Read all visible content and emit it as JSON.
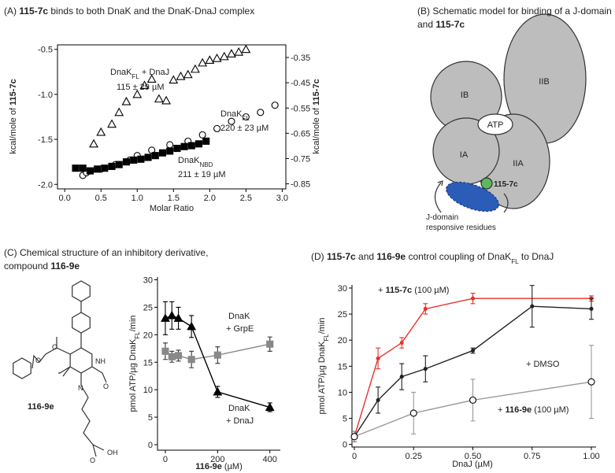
{
  "panels": {
    "a_title": [
      [
        "(A) ",
        "115-7c",
        " binds to both DnaK and the DnaK-DnaJ complex"
      ]
    ],
    "b_title": [
      [
        "(B) Schematic model for binding of a J-domain"
      ],
      [
        "and ",
        "115-7c"
      ]
    ],
    "c_title": [
      [
        "(C) Chemical structure of an inhibitory derivative,"
      ],
      [
        "compound ",
        "116-9e"
      ]
    ],
    "d_title": [
      [
        "(D) ",
        "115-7c",
        " and ",
        "116-9e",
        " control coupling of DnaK",
        "FL",
        " to DnaJ"
      ]
    ]
  },
  "diagram": {
    "domains": [
      "IB",
      "IIB",
      "ATP",
      "IA",
      "IIA"
    ],
    "ligand": "115-7c",
    "note": [
      "J-domain",
      "responsive residues"
    ]
  },
  "structure": {
    "name": "116-9e",
    "atoms": [
      "O",
      "O",
      "NH",
      "N",
      "O",
      "O",
      "OH"
    ]
  },
  "chart_data": [
    {
      "type": "scatter",
      "xlabel": "Molar Ratio",
      "ylabel": [
        "kcal/mole of ",
        "115-7c"
      ],
      "y2label": [
        "kcal/mole of ",
        "115-7c"
      ],
      "xlim": [
        -0.1,
        3.05
      ],
      "ylim": [
        -2.05,
        -0.45
      ],
      "y2lim": [
        -0.87,
        -0.3
      ],
      "xticks": [
        {
          "value": 0,
          "label": "0.0"
        },
        0.5,
        {
          "value": 1,
          "label": "1.0"
        },
        1.5,
        {
          "value": 2,
          "label": "2.0"
        },
        2.5,
        {
          "value": 3,
          "label": "3.0"
        }
      ],
      "yticks": [
        {
          "value": -2,
          "label": "-2.0"
        },
        -1.5,
        {
          "value": -1,
          "label": "-1.0"
        },
        -0.5
      ],
      "y2ticks": [
        -0.85,
        -0.75,
        -0.65,
        -0.55,
        -0.45,
        -0.35
      ],
      "series": [
        {
          "label": [
            "DnaK",
            "FL",
            " + DnaJ"
          ],
          "kd": "115 ± 29 µM",
          "marker": "triangle",
          "filled": false,
          "color": "#000000",
          "x": [
            0.4,
            0.5,
            0.65,
            0.75,
            0.85,
            1.0,
            1.1,
            1.2,
            1.3,
            1.4,
            1.5,
            1.6,
            1.7,
            1.8,
            1.9,
            2.0,
            2.1,
            2.2,
            2.3,
            2.4,
            2.5
          ],
          "values": [
            -1.55,
            -1.42,
            -1.33,
            -1.2,
            -1.08,
            -1.0,
            -0.9,
            -0.83,
            -1.05,
            -1.07,
            -0.84,
            -0.8,
            -0.78,
            -0.72,
            -0.65,
            -0.62,
            -0.6,
            -0.58,
            -0.55,
            -0.53,
            -0.5
          ]
        },
        {
          "label": [
            "DnaK",
            "FL",
            ""
          ],
          "kd": "220 ± 23 µM",
          "marker": "circle",
          "filled": false,
          "color": "#000000",
          "x": [
            0.25,
            0.3,
            0.5,
            0.7,
            0.9,
            1.0,
            1.2,
            1.45,
            1.7,
            1.9,
            2.1,
            2.3,
            2.5,
            2.7,
            2.9
          ],
          "values": [
            -1.9,
            -1.87,
            -1.83,
            -1.78,
            -1.73,
            -1.68,
            -1.62,
            -1.56,
            -1.52,
            -1.45,
            -1.38,
            -1.3,
            -1.25,
            -1.2,
            -1.12
          ]
        },
        {
          "label": [
            "DnaK",
            "NBD",
            ""
          ],
          "kd": "211 ± 19 µM",
          "marker": "square",
          "filled": true,
          "color": "#000000",
          "x": [
            0.15,
            0.25,
            0.35,
            0.45,
            0.55,
            0.65,
            0.75,
            0.85,
            0.95,
            1.05,
            1.15,
            1.25,
            1.35,
            1.45,
            1.55,
            1.65,
            1.75,
            1.85,
            1.95
          ],
          "values": [
            -1.82,
            -1.82,
            -1.85,
            -1.83,
            -1.82,
            -1.8,
            -1.78,
            -1.75,
            -1.73,
            -1.72,
            -1.7,
            -1.68,
            -1.65,
            -1.63,
            -1.6,
            -1.58,
            -1.57,
            -1.55,
            -1.52
          ]
        }
      ]
    },
    {
      "type": "line",
      "xlabel": [
        "116-9e",
        " (µM)"
      ],
      "ylabel": [
        "pmol ATP/µg DnaK",
        "FL",
        "/min"
      ],
      "xlim": [
        -30,
        440
      ],
      "ylim": [
        -1,
        30.5
      ],
      "xticks": [
        0,
        200,
        400
      ],
      "yticks": [
        0,
        5,
        10,
        15,
        20,
        25,
        30
      ],
      "series": [
        {
          "label": [
            "DnaK",
            "+ GrpE"
          ],
          "marker": "square",
          "filled": true,
          "color": "#888888",
          "x": [
            0,
            25,
            50,
            100,
            200,
            400
          ],
          "values": [
            17,
            16,
            16.2,
            15.5,
            16.3,
            18.3
          ],
          "errors": [
            1.5,
            1,
            1,
            1.5,
            1.5,
            1.3
          ]
        },
        {
          "label": [
            "DnaK",
            "+ DnaJ"
          ],
          "marker": "triangle",
          "filled": true,
          "color": "#000000",
          "x": [
            0,
            25,
            50,
            100,
            200,
            400
          ],
          "values": [
            23,
            23.5,
            23,
            21.5,
            9.6,
            6.8
          ],
          "errors": [
            3,
            2.5,
            2,
            2,
            1,
            0.8
          ]
        }
      ]
    },
    {
      "type": "line",
      "xlabel": "DnaJ (µM)",
      "ylabel": [
        "pmol ATP/µg DnaK",
        "FL",
        "/min"
      ],
      "xlim": [
        -0.01,
        1.02
      ],
      "ylim": [
        -0.5,
        30.6
      ],
      "xticks": [
        0,
        0.25,
        {
          "value": 0.5,
          "label": "0.50"
        },
        0.75,
        {
          "value": 1,
          "label": "1.00"
        }
      ],
      "yticks": [
        0,
        5,
        10,
        15,
        20,
        25,
        30
      ],
      "series": [
        {
          "label": [
            "+ ",
            "115-7c",
            " (100 µM)"
          ],
          "marker": "dot",
          "filled": true,
          "color": "#e8312a",
          "x": [
            0,
            0.1,
            0.2,
            0.3,
            0.5,
            1.0
          ],
          "values": [
            1.5,
            16.5,
            19.5,
            26,
            28,
            28
          ],
          "errors": [
            1,
            2,
            1,
            1,
            1,
            0.5
          ]
        },
        {
          "label": [
            "+ DMSO"
          ],
          "marker": "dot",
          "filled": true,
          "color": "#222222",
          "x": [
            0,
            0.1,
            0.2,
            0.3,
            0.5,
            0.75,
            1.0
          ],
          "values": [
            1.5,
            8.5,
            13,
            14.5,
            18,
            26.5,
            26
          ],
          "errors": [
            1,
            2.5,
            2.5,
            2.5,
            0.5,
            4,
            2
          ]
        },
        {
          "label": [
            "+ ",
            "116-9e",
            " (100 µM)"
          ],
          "marker": "circle",
          "filled": false,
          "color": "#999999",
          "x": [
            0,
            0.25,
            0.5,
            1.0
          ],
          "values": [
            1.5,
            6,
            8.5,
            12
          ],
          "errors": [
            1,
            4,
            4,
            7
          ]
        }
      ]
    }
  ]
}
